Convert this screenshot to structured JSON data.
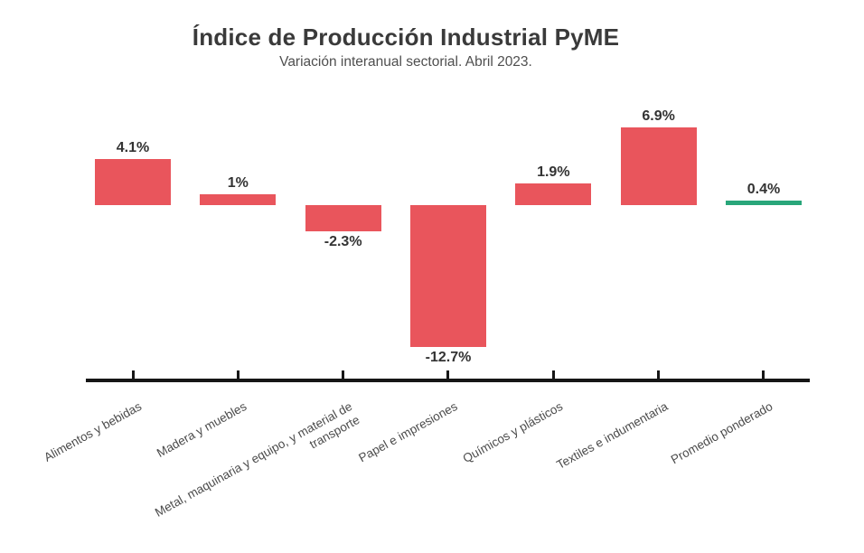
{
  "chart_data": {
    "type": "bar",
    "title": "Índice de Producción Industrial PyME",
    "subtitle": "Variación interanual sectorial. Abril 2023.",
    "categories": [
      "Alimentos y bebidas",
      "Madera y muebles",
      "Metal, maquinaria y equipo, y material de\ntransporte",
      "Papel e impresiones",
      "Químicos y plásticos",
      "Textiles e indumentaria",
      "Promedio ponderado"
    ],
    "values": [
      4.1,
      1,
      -2.3,
      -12.7,
      1.9,
      6.9,
      0.4
    ],
    "value_labels": [
      "4.1%",
      "1%",
      "-2.3%",
      "-12.7%",
      "1.9%",
      "6.9%",
      "0.4%"
    ],
    "point_colors": [
      "#E9555C",
      "#E9555C",
      "#E9555C",
      "#E9555C",
      "#E9555C",
      "#E9555C",
      "#29A67A"
    ],
    "bar_color": "#E9555C",
    "highlight_color": "#29A67A",
    "xlabel": "",
    "ylabel": "",
    "ylim": [
      -14,
      8
    ],
    "grid": false,
    "legend": false,
    "baseline": 0,
    "x_tick_rotation_deg": 30
  },
  "colors": {
    "background": "#FFFFFF",
    "title_text": "#3A3A3A",
    "subtitle_text": "#4F4F4F",
    "value_label_text": "#333333",
    "category_label_text": "#4B4B4B",
    "axis": "#161616"
  }
}
